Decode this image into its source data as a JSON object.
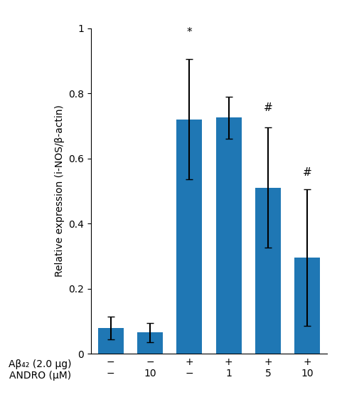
{
  "chart_data": {
    "type": "bar",
    "categories": [
      "−\n−",
      "−\n10",
      "+\n−",
      "+\n1",
      "+\n5",
      "+\n10"
    ],
    "row_labels": [
      "Aβ₄₂ (2.0 μg)",
      "ANDRO (μM)"
    ],
    "values": [
      0.08,
      0.065,
      0.72,
      0.725,
      0.51,
      0.295
    ],
    "errors": [
      0.035,
      0.03,
      0.185,
      0.065,
      0.185,
      0.21
    ],
    "ylabel": "Relative expression (i-NOS/β-actin)",
    "ylim": [
      0,
      1.0
    ],
    "yticks": [
      0,
      0.2,
      0.4,
      0.6,
      0.8,
      {
        "value": 1.0,
        "label": "1"
      }
    ],
    "annotations": [
      {
        "category_index": 2,
        "y": 0.97,
        "text": "*"
      },
      {
        "category_index": 4,
        "y": 0.74,
        "text": "#"
      },
      {
        "category_index": 5,
        "y": 0.54,
        "text": "#"
      }
    ],
    "grid": false
  }
}
